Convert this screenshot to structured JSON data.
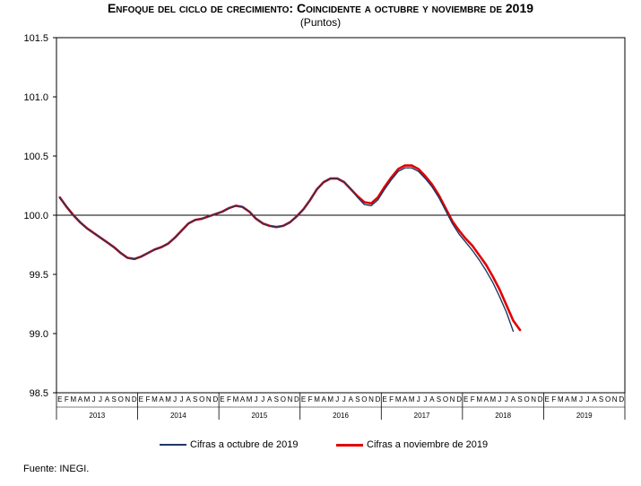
{
  "title": "Enfoque del ciclo de crecimiento: Coincidente a octubre y noviembre de 2019",
  "subtitle": "(Puntos)",
  "source": "Fuente: INEGI.",
  "chart_data": {
    "type": "line",
    "ylim": [
      98.5,
      101.5
    ],
    "yticks": [
      "101.5",
      "101.0",
      "100.5",
      "100.0",
      "99.5",
      "99.0",
      "98.5"
    ],
    "reference_line": 100.0,
    "month_labels": [
      "E",
      "F",
      "M",
      "A",
      "M",
      "J",
      "J",
      "A",
      "S",
      "O",
      "N",
      "D"
    ],
    "years": [
      "2013",
      "2014",
      "2015",
      "2016",
      "2017",
      "2018",
      "2019"
    ],
    "start": "2013-01",
    "series": [
      {
        "name": "Cifras a octubre de 2019",
        "color": "#1f3864",
        "values": [
          100.15,
          100.07,
          100.0,
          99.94,
          99.89,
          99.85,
          99.81,
          99.77,
          99.73,
          99.68,
          99.64,
          99.63,
          99.65,
          99.68,
          99.71,
          99.73,
          99.76,
          99.81,
          99.87,
          99.93,
          99.96,
          99.97,
          99.99,
          100.01,
          100.03,
          100.06,
          100.08,
          100.07,
          100.03,
          99.97,
          99.93,
          99.91,
          99.9,
          99.91,
          99.94,
          99.99,
          100.05,
          100.13,
          100.22,
          100.28,
          100.31,
          100.31,
          100.28,
          100.22,
          100.15,
          100.09,
          100.08,
          100.13,
          100.22,
          100.3,
          100.37,
          100.4,
          100.4,
          100.37,
          100.31,
          100.24,
          100.15,
          100.04,
          99.93,
          99.84,
          99.77,
          99.7,
          99.62,
          99.53,
          99.43,
          99.31,
          99.18,
          99.02
        ]
      },
      {
        "name": "Cifras a noviembre de 2019",
        "color": "#e00000",
        "values": [
          100.15,
          100.07,
          100.0,
          99.94,
          99.89,
          99.85,
          99.81,
          99.77,
          99.73,
          99.68,
          99.64,
          99.63,
          99.65,
          99.68,
          99.71,
          99.73,
          99.76,
          99.81,
          99.87,
          99.93,
          99.96,
          99.97,
          99.99,
          100.01,
          100.03,
          100.06,
          100.08,
          100.07,
          100.03,
          99.97,
          99.93,
          99.91,
          99.9,
          99.91,
          99.94,
          99.99,
          100.05,
          100.13,
          100.22,
          100.28,
          100.31,
          100.31,
          100.28,
          100.22,
          100.16,
          100.11,
          100.1,
          100.15,
          100.24,
          100.32,
          100.39,
          100.42,
          100.42,
          100.39,
          100.33,
          100.26,
          100.17,
          100.06,
          99.95,
          99.87,
          99.8,
          99.74,
          99.66,
          99.58,
          99.48,
          99.37,
          99.24,
          99.11,
          99.03
        ]
      }
    ]
  }
}
